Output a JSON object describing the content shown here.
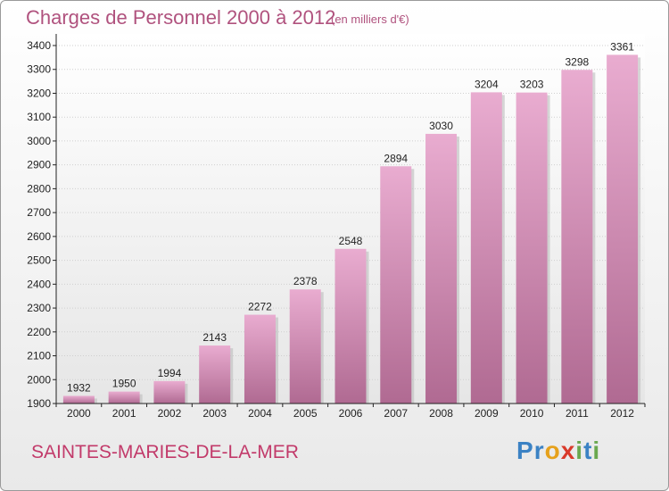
{
  "header": {
    "title": "Charges de Personnel 2000 à 2012",
    "subtitle": "(en milliers d'€)"
  },
  "footer": {
    "place": "SAINTES-MARIES-DE-LA-MER",
    "logo_letters": [
      {
        "ch": "P",
        "color": "#3b82c4"
      },
      {
        "ch": "r",
        "color": "#3b82c4"
      },
      {
        "ch": "o",
        "color": "#e6a11b"
      },
      {
        "ch": "x",
        "color": "#d93a2b"
      },
      {
        "ch": "i",
        "color": "#6aa84f"
      },
      {
        "ch": "t",
        "color": "#3b82c4"
      },
      {
        "ch": "i",
        "color": "#6aa84f"
      }
    ]
  },
  "colors": {
    "bar_top": "#e9acd0",
    "bar_bottom": "#b06a92",
    "axis": "#222222",
    "grid": "#cfcfcf"
  },
  "chart_data": {
    "type": "bar",
    "categories": [
      "2000",
      "2001",
      "2002",
      "2003",
      "2004",
      "2005",
      "2006",
      "2007",
      "2008",
      "2009",
      "2010",
      "2011",
      "2012"
    ],
    "values": [
      1932,
      1950,
      1994,
      2143,
      2272,
      2378,
      2548,
      2894,
      3030,
      3204,
      3203,
      3298,
      3361
    ],
    "value_labels": [
      "1932",
      "1950",
      "1994",
      "2143",
      "2272",
      "2378",
      "2548",
      "2894",
      "3030",
      "3204",
      "3203",
      "3298",
      "3361"
    ],
    "title": "Charges de Personnel 2000 à 2012",
    "xlabel": "",
    "ylabel": "",
    "ylim": [
      1900,
      3400
    ],
    "yticks": [
      "1900",
      "2000",
      "2100",
      "2200",
      "2300",
      "2400",
      "2500",
      "2600",
      "2700",
      "2800",
      "2900",
      "3000",
      "3100",
      "3200",
      "3300",
      "3400"
    ],
    "grid": true,
    "legend": "none"
  }
}
